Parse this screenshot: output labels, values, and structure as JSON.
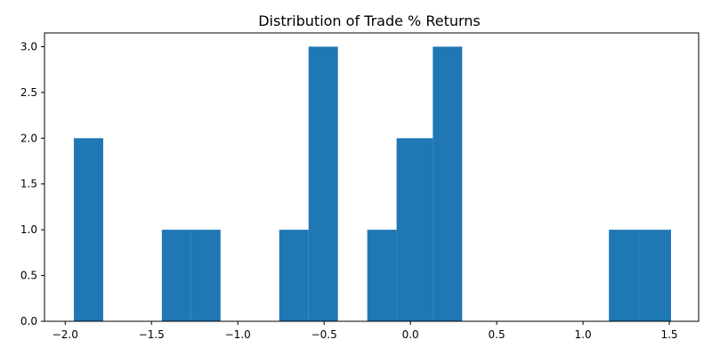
{
  "chart_data": {
    "type": "bar",
    "subtype": "histogram",
    "title": "Distribution of Trade % Returns",
    "xlabel": "",
    "ylabel": "",
    "bar_color": "#1f77b4",
    "grid": false,
    "legend": false,
    "xlim": [
      -2.12,
      1.67
    ],
    "ylim": [
      0,
      3.15
    ],
    "x_ticks": [
      {
        "value": -2.0,
        "label": "−2.0"
      },
      {
        "value": -1.5,
        "label": "−1.5"
      },
      {
        "value": -1.0,
        "label": "−1.0"
      },
      {
        "value": -0.5,
        "label": "−0.5"
      },
      {
        "value": 0.0,
        "label": "0.0"
      },
      {
        "value": 0.5,
        "label": "0.5"
      },
      {
        "value": 1.0,
        "label": "1.0"
      },
      {
        "value": 1.5,
        "label": "1.5"
      }
    ],
    "y_ticks": [
      {
        "value": 0.0,
        "label": "0.0"
      },
      {
        "value": 0.5,
        "label": "0.5"
      },
      {
        "value": 1.0,
        "label": "1.0"
      },
      {
        "value": 1.5,
        "label": "1.5"
      },
      {
        "value": 2.0,
        "label": "2.0"
      },
      {
        "value": 2.5,
        "label": "2.5"
      },
      {
        "value": 3.0,
        "label": "3.0"
      }
    ],
    "bins": [
      {
        "start": -1.95,
        "end": -1.78,
        "count": 2
      },
      {
        "start": -1.78,
        "end": -1.61,
        "count": 0
      },
      {
        "start": -1.61,
        "end": -1.44,
        "count": 0
      },
      {
        "start": -1.44,
        "end": -1.27,
        "count": 1
      },
      {
        "start": -1.27,
        "end": -1.1,
        "count": 1
      },
      {
        "start": -1.1,
        "end": -0.93,
        "count": 0
      },
      {
        "start": -0.93,
        "end": -0.76,
        "count": 0
      },
      {
        "start": -0.76,
        "end": -0.59,
        "count": 1
      },
      {
        "start": -0.59,
        "end": -0.42,
        "count": 3
      },
      {
        "start": -0.42,
        "end": -0.25,
        "count": 0
      },
      {
        "start": -0.25,
        "end": -0.08,
        "count": 1
      },
      {
        "start": -0.08,
        "end": 0.13,
        "count": 2
      },
      {
        "start": 0.13,
        "end": 0.3,
        "count": 3
      },
      {
        "start": 0.3,
        "end": 0.47,
        "count": 0
      },
      {
        "start": 0.47,
        "end": 0.64,
        "count": 0
      },
      {
        "start": 0.64,
        "end": 0.81,
        "count": 0
      },
      {
        "start": 0.81,
        "end": 0.98,
        "count": 0
      },
      {
        "start": 0.98,
        "end": 1.15,
        "count": 0
      },
      {
        "start": 1.15,
        "end": 1.32,
        "count": 1
      },
      {
        "start": 1.32,
        "end": 1.51,
        "count": 1
      }
    ]
  }
}
